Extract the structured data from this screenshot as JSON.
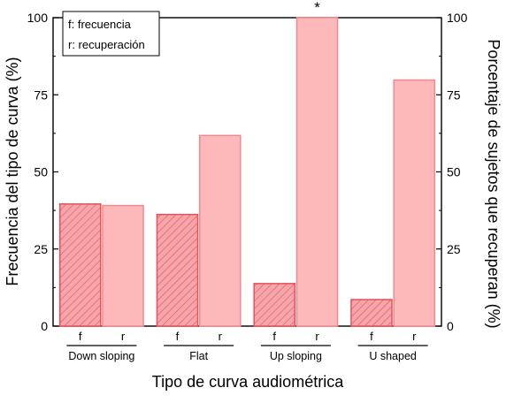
{
  "chart_data": {
    "type": "bar",
    "categories": [
      "Down sloping",
      "Flat",
      "Up sloping",
      "U shaped"
    ],
    "series": [
      {
        "key": "f",
        "values": [
          39.6,
          36.2,
          13.8,
          8.6
        ],
        "color": "#e8505b",
        "fill": "#f4a6aa",
        "pattern": "hatched"
      },
      {
        "key": "r",
        "values": [
          39.1,
          61.8,
          100,
          79.8
        ],
        "color": "#f18a90",
        "fill": "#fdb8ba",
        "pattern": "solid"
      }
    ],
    "sub_labels": [
      "f",
      "r"
    ],
    "xlabel": "Tipo de curva audiométrica",
    "ylabel_left": "Frecuencia del tipo de curva (%)",
    "ylabel_right": "Porcentaje de sujetos que recuperan (%)",
    "ylim": [
      0,
      100
    ],
    "yticks": [
      "0",
      "25",
      "50",
      "75",
      "100"
    ],
    "annotations": [
      {
        "category": "Up sloping",
        "series": "r",
        "text": "*"
      }
    ],
    "legend": {
      "position": "top-left",
      "entries": [
        "f: frecuencia",
        "r: recuperación"
      ]
    }
  }
}
